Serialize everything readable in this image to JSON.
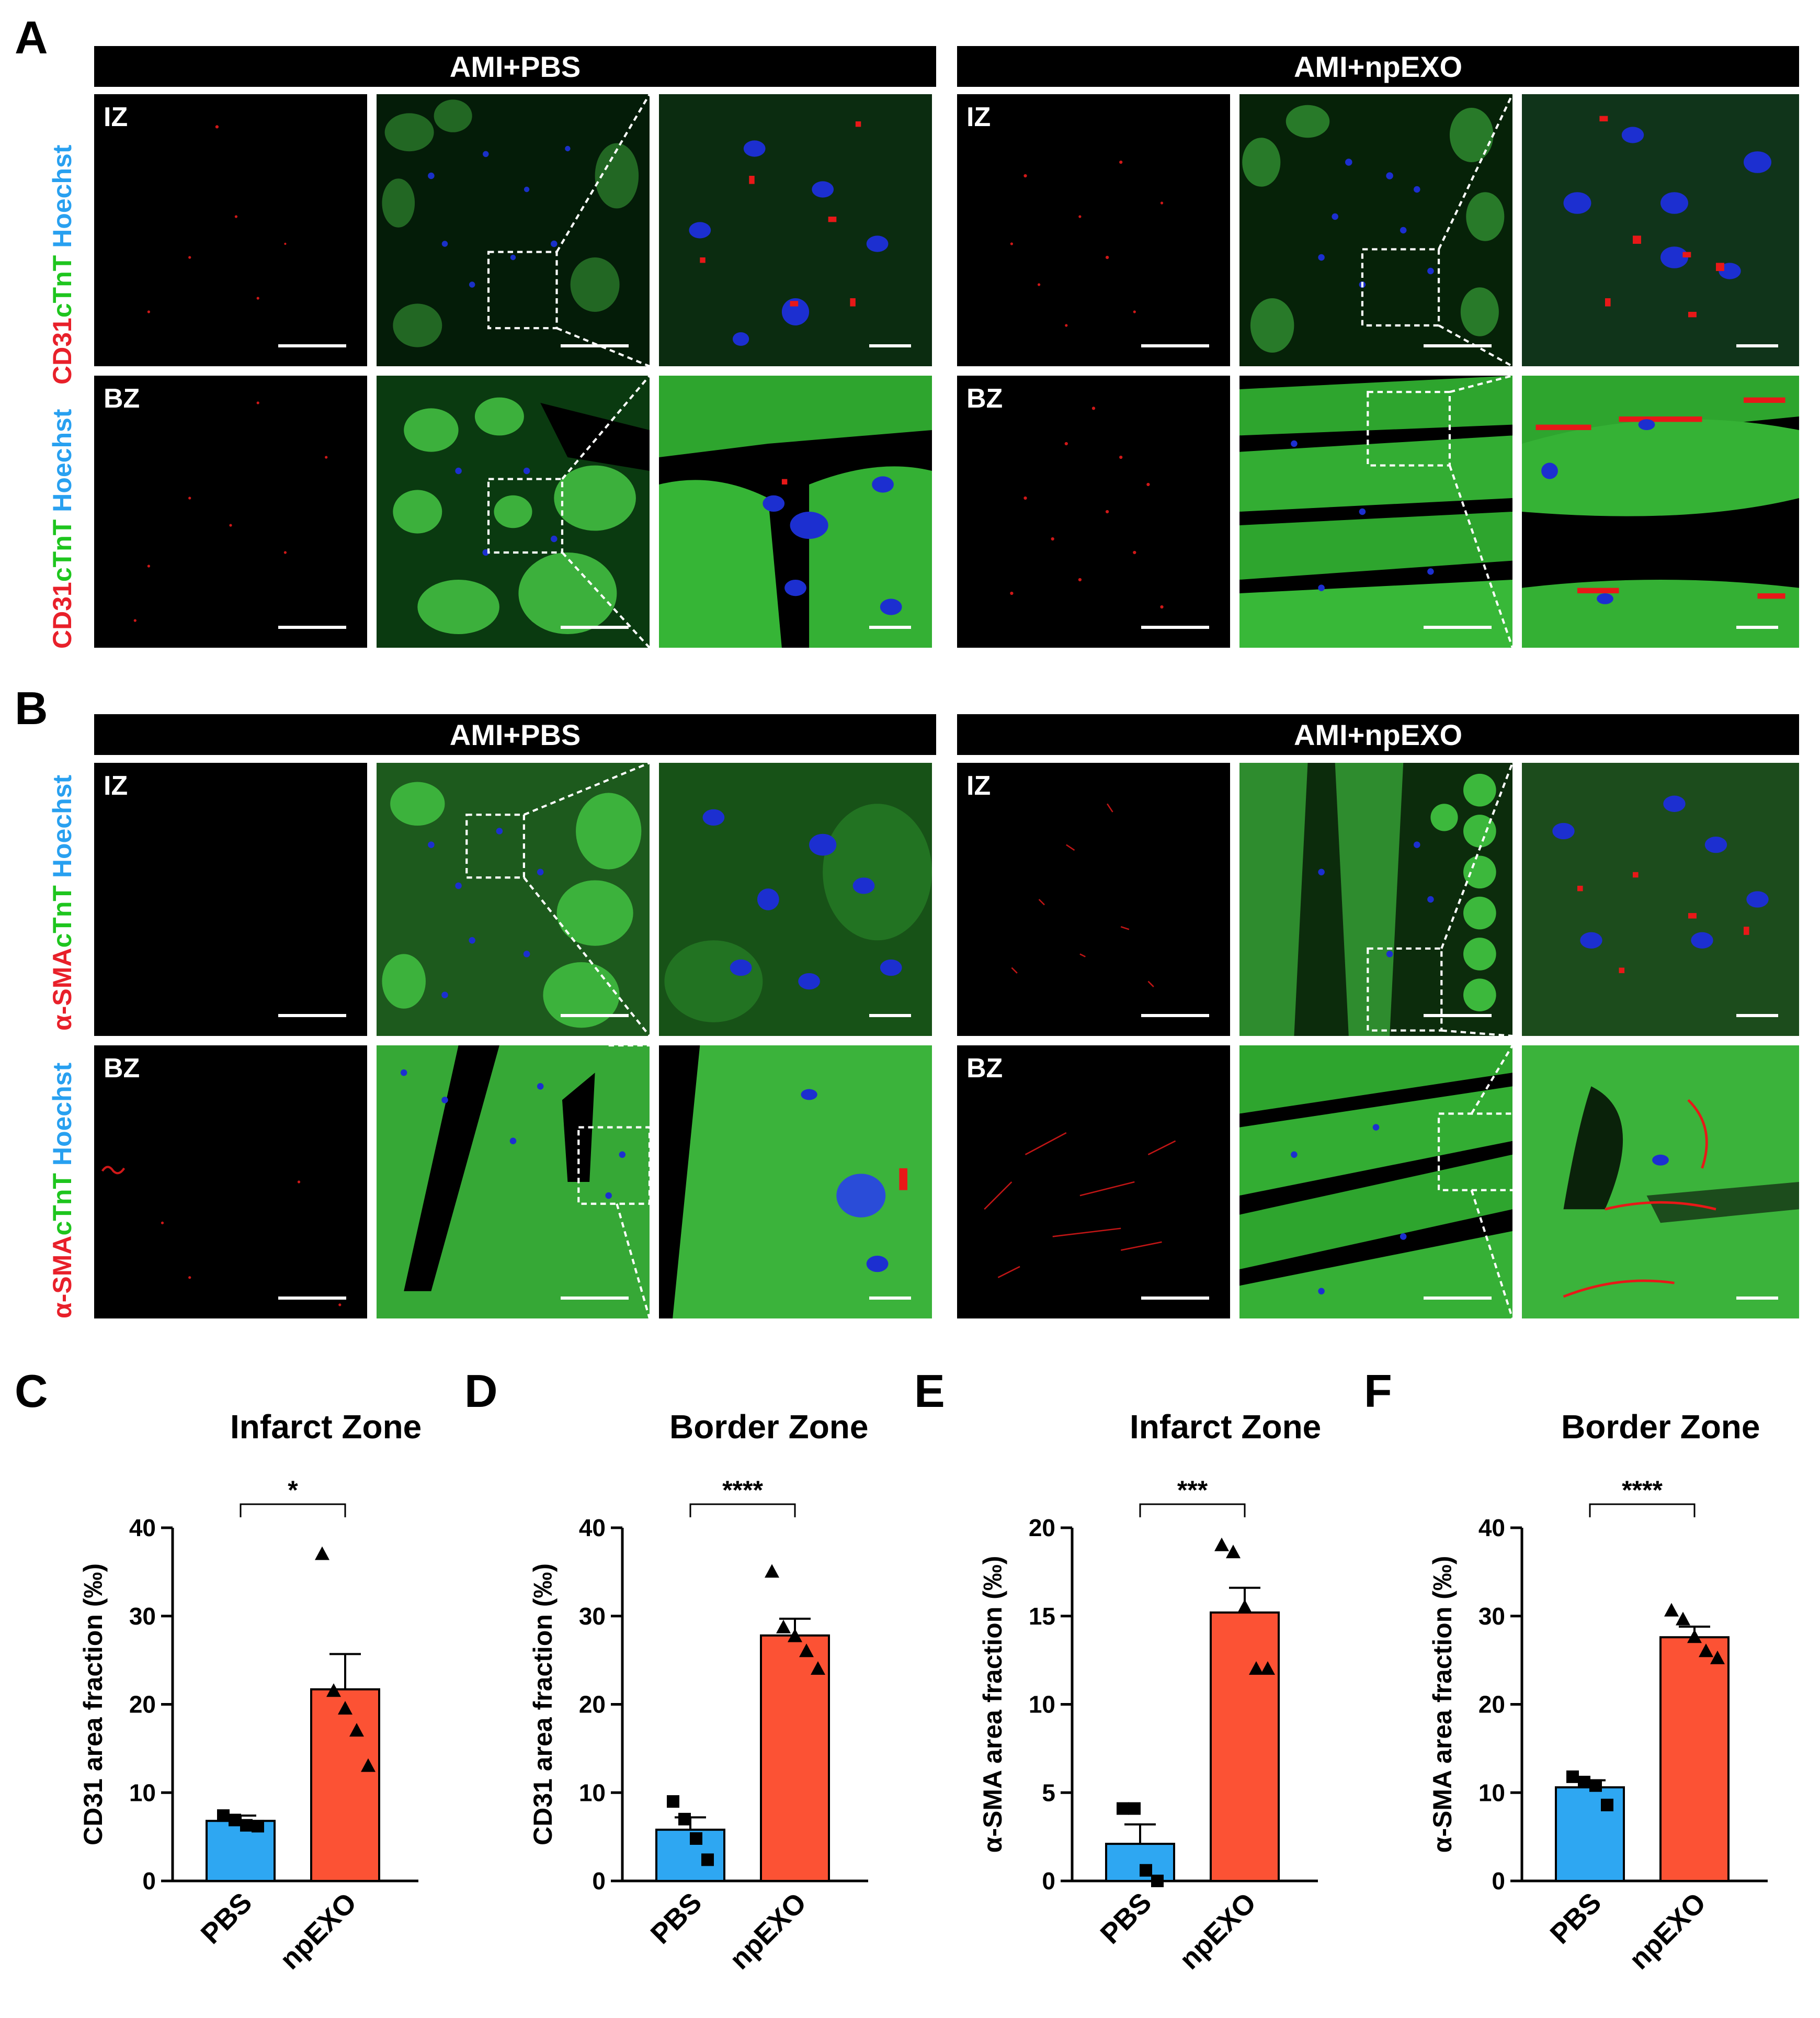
{
  "panels": {
    "A": {
      "letter": "A",
      "left_header": "AMI+PBS",
      "right_header": "AMI+npEXO",
      "rows": [
        {
          "zone": "IZ",
          "ylabel": [
            "CD31",
            "cTnT",
            "Hoechst"
          ]
        },
        {
          "zone": "BZ",
          "ylabel": [
            "CD31",
            "cTnT",
            "Hoechst"
          ]
        }
      ]
    },
    "B": {
      "letter": "B",
      "left_header": "AMI+PBS",
      "right_header": "AMI+npEXO",
      "rows": [
        {
          "zone": "IZ",
          "ylabel": [
            "α-SMA",
            "cTnT",
            "Hoechst"
          ]
        },
        {
          "zone": "BZ",
          "ylabel": [
            "α-SMA",
            "cTnT",
            "Hoechst"
          ]
        }
      ]
    }
  },
  "colors": {
    "pbs_bar": "#2ea7f2",
    "npexo_bar": "#fc5234",
    "red_channel": "#e8202a",
    "green_channel": "#1ec51e",
    "blue_channel": "#28a0f0"
  },
  "chart_data": [
    {
      "letter": "C",
      "type": "bar",
      "title": "Infarct Zone",
      "ylabel": "CD31 area fraction (‰)",
      "categories": [
        "PBS",
        "npEXO"
      ],
      "values": [
        6.8,
        21.7
      ],
      "sem": [
        0.6,
        4.0
      ],
      "points": [
        [
          7.4,
          6.9,
          6.3,
          6.2
        ],
        [
          37.0,
          21.5,
          19.5,
          17.0,
          13.0
        ]
      ],
      "ylim": [
        0,
        40
      ],
      "yticks": [
        0,
        10,
        20,
        30,
        40
      ],
      "significance": "*"
    },
    {
      "letter": "D",
      "type": "bar",
      "title": "Border Zone",
      "ylabel": "CD31 area fraction (‰)",
      "categories": [
        "PBS",
        "npEXO"
      ],
      "values": [
        5.8,
        27.8
      ],
      "sem": [
        1.4,
        1.9
      ],
      "points": [
        [
          9.0,
          7.0,
          4.8,
          2.4
        ],
        [
          35.0,
          28.7,
          27.7,
          26.0,
          24.0
        ]
      ],
      "ylim": [
        0,
        40
      ],
      "yticks": [
        0,
        10,
        20,
        30,
        40
      ],
      "significance": "****"
    },
    {
      "letter": "E",
      "type": "bar",
      "title": "Infarct Zone",
      "ylabel": "α-SMA area fraction (‰)",
      "categories": [
        "PBS",
        "npEXO"
      ],
      "values": [
        2.1,
        15.2
      ],
      "sem": [
        1.1,
        1.4
      ],
      "points": [
        [
          4.1,
          4.1,
          0.6,
          0.0
        ],
        [
          19.0,
          18.6,
          15.5,
          12.0,
          12.0
        ]
      ],
      "ylim": [
        0,
        20
      ],
      "yticks": [
        0,
        5,
        10,
        15,
        20
      ],
      "significance": "***"
    },
    {
      "letter": "F",
      "type": "bar",
      "title": "Border Zone",
      "ylabel": "α-SMA area fraction (‰)",
      "categories": [
        "PBS",
        "npEXO"
      ],
      "values": [
        10.6,
        27.6
      ],
      "sem": [
        0.8,
        1.2
      ],
      "points": [
        [
          11.8,
          11.2,
          10.8,
          8.6
        ],
        [
          30.6,
          29.6,
          27.6,
          26.0,
          25.2
        ]
      ],
      "ylim": [
        0,
        40
      ],
      "yticks": [
        0,
        10,
        20,
        30,
        40
      ],
      "significance": "****"
    }
  ]
}
